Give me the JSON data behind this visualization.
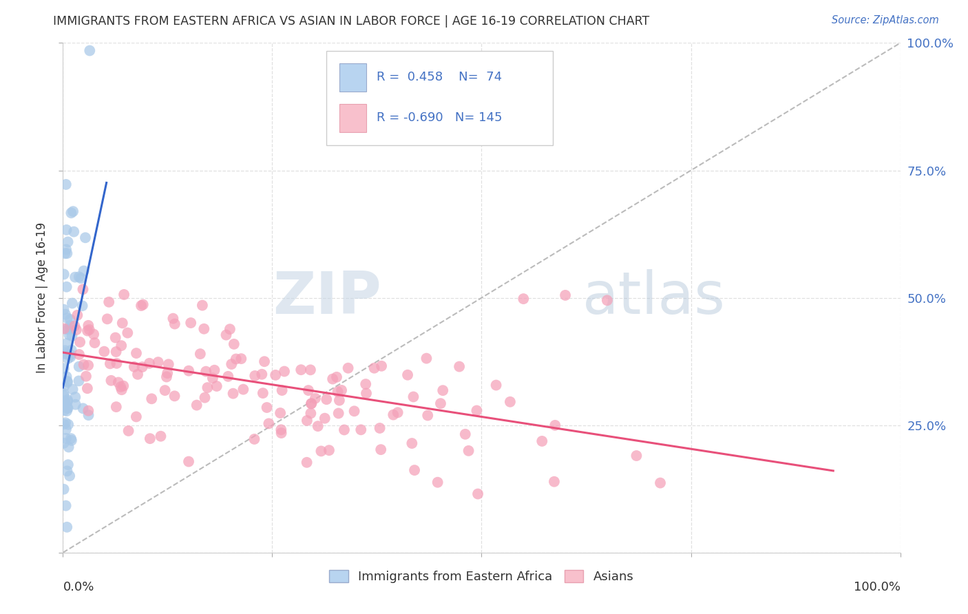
{
  "title": "IMMIGRANTS FROM EASTERN AFRICA VS ASIAN IN LABOR FORCE | AGE 16-19 CORRELATION CHART",
  "source": "Source: ZipAtlas.com",
  "ylabel": "In Labor Force | Age 16-19",
  "legend_blue_r": "0.458",
  "legend_blue_n": "74",
  "legend_pink_r": "-0.690",
  "legend_pink_n": "145",
  "blue_color": "#a8c8e8",
  "pink_color": "#f4a0b8",
  "blue_line_color": "#3366cc",
  "pink_line_color": "#e8507a",
  "dashed_line_color": "#bbbbbb",
  "watermark_zip_color": "#c8d8e8",
  "watermark_atlas_color": "#b8c8d8",
  "title_color": "#333333",
  "source_color": "#4472c4",
  "axis_label_color": "#4472c4",
  "tick_label_color": "#333333",
  "grid_color": "#e0e0e0"
}
